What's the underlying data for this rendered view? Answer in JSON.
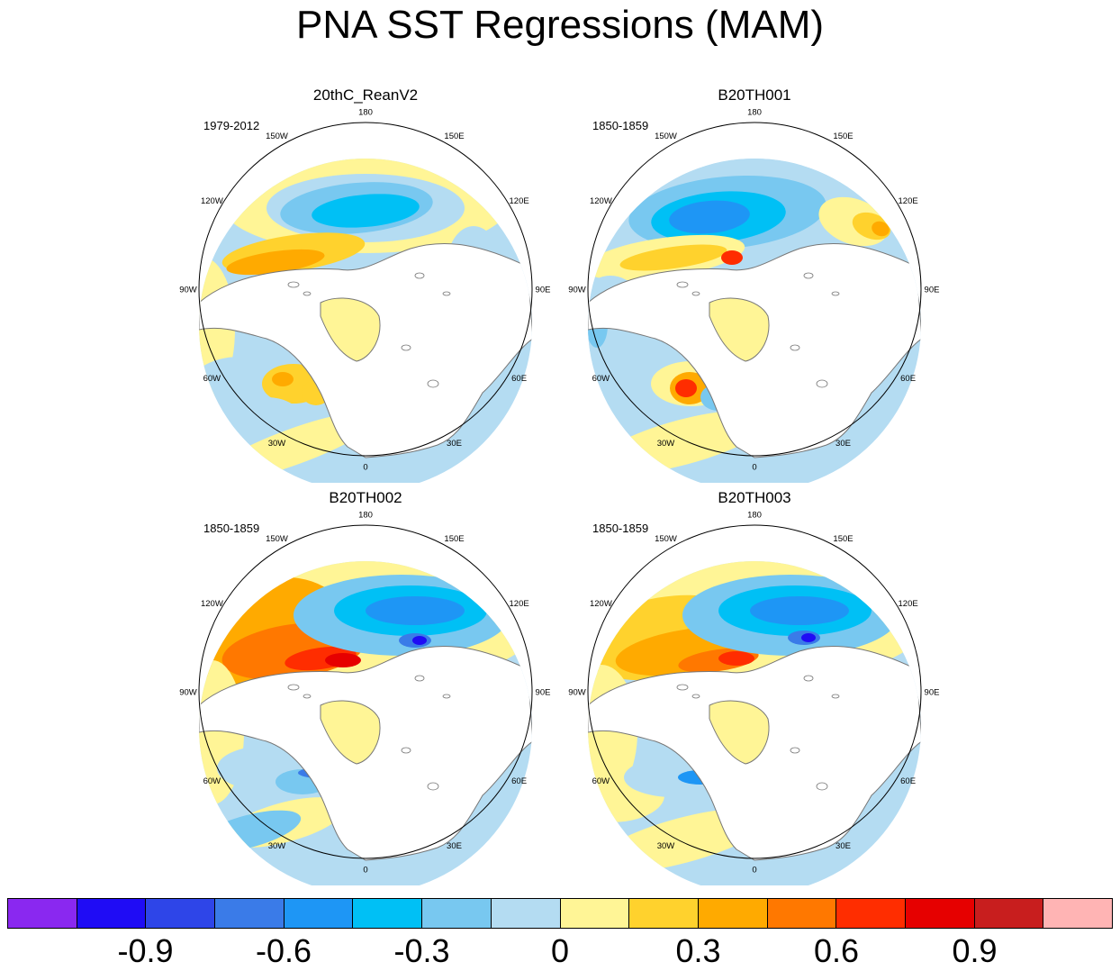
{
  "title": "PNA SST Regressions (MAM)",
  "lon_labels": {
    "n": "180",
    "s": "0",
    "e": "90E",
    "w": "90W",
    "ne1": "150E",
    "ne2": "120E",
    "se1": "60E",
    "se2": "30E",
    "nw1": "150W",
    "nw2": "120W",
    "sw1": "60W",
    "sw2": "30W"
  },
  "panels": [
    {
      "title": "20thC_ReanV2",
      "period": "1979-2012"
    },
    {
      "title": "B20TH001",
      "period": "1850-1859"
    },
    {
      "title": "B20TH002",
      "period": "1850-1859"
    },
    {
      "title": "B20TH003",
      "period": "1850-1859"
    }
  ],
  "colorbar": {
    "colors": [
      "#8a28f0",
      "#1f0cf5",
      "#2e45e8",
      "#3a7be8",
      "#1e96f5",
      "#00c0f5",
      "#78c8f0",
      "#b4dcf2",
      "#fff596",
      "#ffd22d",
      "#ffaa00",
      "#ff7800",
      "#ff2d00",
      "#e60000",
      "#c81e1e",
      "#ffb4b4"
    ],
    "labels": [
      "-0.9",
      "-0.6",
      "-0.3",
      "0",
      "0.3",
      "0.6",
      "0.9"
    ]
  }
}
